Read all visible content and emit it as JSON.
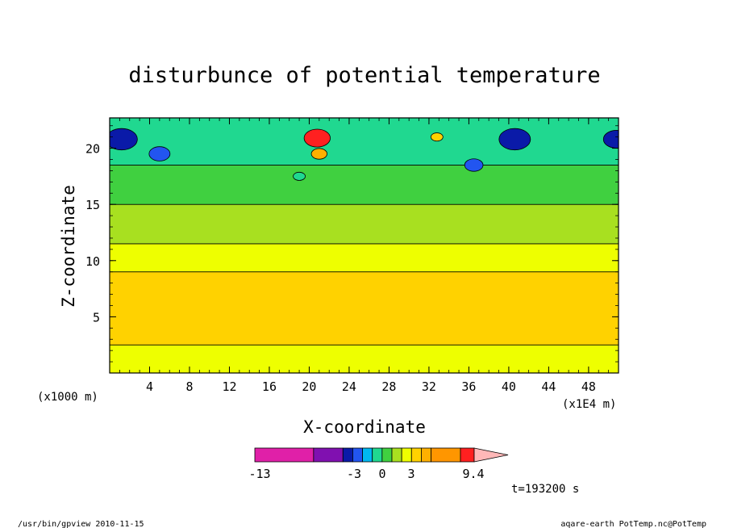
{
  "chart_data": {
    "type": "heatmap",
    "title": "disturbunce of potential temperature",
    "xlabel": "X-coordinate",
    "ylabel": "Z-coordinate",
    "y_unit_label": "(x1000 m)",
    "x_unit_label": "(x1E4 m)",
    "xlim": [
      0,
      51
    ],
    "ylim": [
      0,
      22.7
    ],
    "x_ticks": [
      4,
      8,
      12,
      16,
      20,
      24,
      28,
      32,
      36,
      40,
      44,
      48
    ],
    "y_ticks": [
      5,
      10,
      15,
      20
    ],
    "x_tick_labels": [
      "4",
      "8",
      "12",
      "16",
      "20",
      "24",
      "28",
      "32",
      "36",
      "40",
      "44",
      "48"
    ],
    "y_tick_labels": [
      "5",
      "10",
      "15",
      "20"
    ],
    "bands": [
      {
        "z_bottom": 0,
        "z_top": 2.5,
        "value": 1.5
      },
      {
        "z_bottom": 2.5,
        "z_top": 9,
        "value": 2.5
      },
      {
        "z_bottom": 9,
        "z_top": 11.5,
        "value": 1.5
      },
      {
        "z_bottom": 11.5,
        "z_top": 15,
        "value": 0.5
      },
      {
        "z_bottom": 15,
        "z_top": 18.5,
        "value": -0.5
      },
      {
        "z_bottom": 18.5,
        "z_top": 22.7,
        "value": -1.5
      }
    ],
    "features": [
      {
        "x": 1.2,
        "z": 20.8,
        "value": -6
      },
      {
        "x": 5,
        "z": 19.5,
        "value": -4
      },
      {
        "x": 20.8,
        "z": 20.9,
        "value": 5
      },
      {
        "x": 21,
        "z": 19.5,
        "value": 3
      },
      {
        "x": 19,
        "z": 17.5,
        "value": -1.5
      },
      {
        "x": 40.6,
        "z": 20.8,
        "value": -6
      },
      {
        "x": 36.5,
        "z": 18.5,
        "value": -3.5
      },
      {
        "x": 50.8,
        "z": 20.8,
        "value": -5
      },
      {
        "x": 32.8,
        "z": 21,
        "value": 2
      }
    ],
    "colorbar": {
      "min_label": "-13",
      "labels": [
        "-3",
        "0",
        "3",
        "9.4"
      ],
      "levels": [
        -13,
        -7,
        -4,
        -3,
        -2,
        -1,
        0,
        1,
        2,
        3,
        4,
        5,
        8,
        9.4
      ],
      "colors": [
        "#e020a8",
        "#8010b0",
        "#0a1aa8",
        "#2255f0",
        "#00b8f0",
        "#20d890",
        "#40d040",
        "#a8e020",
        "#eeff00",
        "#ffd200",
        "#ffb000",
        "#ff9600",
        "#ff2020",
        "#ff7070",
        "#ffb8b8"
      ]
    },
    "time_label": "t=193200 s"
  },
  "footer": {
    "left": "/usr/bin/gpview  2010-11-15",
    "right": "aqare-earth_PotTemp.nc@PotTemp"
  }
}
